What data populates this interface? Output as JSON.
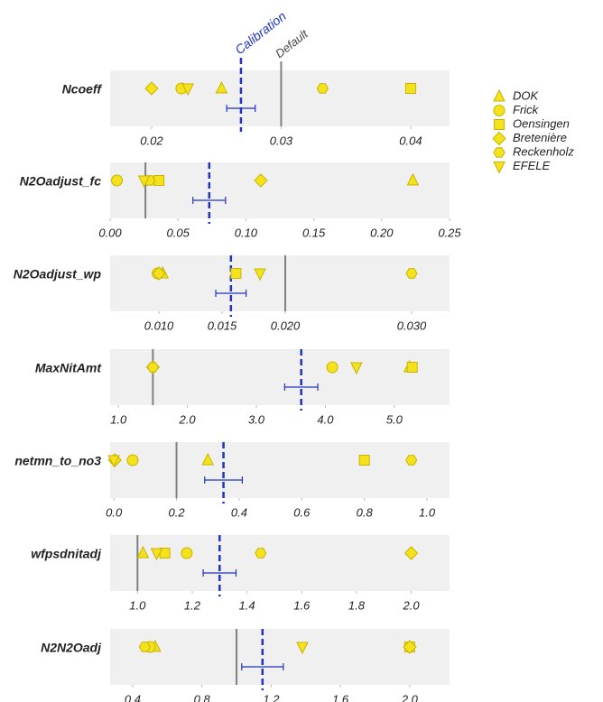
{
  "chart_data": {
    "type": "dotplot",
    "annotations": {
      "calibration": "Calibration",
      "default": "Default"
    },
    "marker_fill": "#f4e21c",
    "marker_stroke": "#c9b300",
    "default_color": "#808080",
    "calibration_color": "#1f33c4",
    "panel_color": "#f0f0f0",
    "series": [
      {
        "name": "DOK",
        "marker": "triangle",
        "values": [
          0.0254,
          0.223,
          0.0103,
          5.22,
          0.3,
          1.02,
          0.53
        ]
      },
      {
        "name": "Frick",
        "marker": "circle",
        "values": [
          0.0223,
          0.005,
          0.0099,
          4.1,
          0.06,
          1.18,
          0.5
        ]
      },
      {
        "name": "Oensingen",
        "marker": "square",
        "values": [
          0.04,
          0.036,
          0.0161,
          5.26,
          0.8,
          1.1,
          2.0
        ]
      },
      {
        "name": "Bretenière",
        "marker": "diamond",
        "values": [
          0.02,
          0.111,
          0.01,
          1.5,
          0.003,
          2.0,
          2.0
        ]
      },
      {
        "name": "Reckenholz",
        "marker": "hexagon",
        "values": [
          0.0332,
          0.029,
          0.03,
          1.5,
          0.95,
          1.45,
          0.47
        ]
      },
      {
        "name": "EFELE",
        "marker": "triangle-down",
        "values": [
          0.0228,
          0.025,
          0.018,
          4.45,
          0.0,
          1.07,
          1.38
        ]
      }
    ],
    "panels": [
      {
        "title": "Ncoeff",
        "xlim": [
          0.0168,
          0.043
        ],
        "xticks": [
          0.02,
          0.03,
          0.04
        ],
        "default": 0.03,
        "calibration": 0.0269,
        "calibration_error": 0.0011
      },
      {
        "title": "N2Oadjust_fc",
        "xlim": [
          0,
          0.25
        ],
        "xticks": [
          {
            "value": 0,
            "label": "0.00"
          },
          0.05,
          {
            "value": 0.1,
            "label": "0.10"
          },
          0.15,
          {
            "value": 0.2,
            "label": "0.20"
          },
          0.25
        ],
        "default": 0.026,
        "calibration": 0.073,
        "calibration_error": 0.012
      },
      {
        "title": "N2Oadjust_wp",
        "xlim": [
          0.00614,
          0.033
        ],
        "xticks": [
          {
            "value": 0.01,
            "label": "0.010"
          },
          0.015,
          {
            "value": 0.02,
            "label": "0.020"
          },
          {
            "value": 0.03,
            "label": "0.030"
          }
        ],
        "default": 0.02,
        "calibration": 0.0157,
        "calibration_error": 0.0012
      },
      {
        "title": "MaxNitAmt",
        "xlim": [
          0.88,
          5.8
        ],
        "xticks": [
          {
            "value": 1,
            "label": "1.0"
          },
          {
            "value": 2,
            "label": "2.0"
          },
          {
            "value": 3,
            "label": "3.0"
          },
          {
            "value": 4,
            "label": "4.0"
          },
          {
            "value": 5,
            "label": "5.0"
          }
        ],
        "default": 1.5,
        "calibration": 3.65,
        "calibration_error": 0.24
      },
      {
        "title": "netmn_to_no3",
        "xlim": [
          -0.012,
          1.072
        ],
        "xticks": [
          {
            "value": 0,
            "label": "0.0"
          },
          0.2,
          0.4,
          0.6,
          0.8,
          {
            "value": 1,
            "label": "1.0"
          }
        ],
        "default": 0.2,
        "calibration": 0.35,
        "calibration_error": 0.06
      },
      {
        "title": "wfpsdnitadj",
        "xlim": [
          0.9,
          2.14
        ],
        "xticks": [
          {
            "value": 1,
            "label": "1.0"
          },
          1.2,
          1.4,
          1.6,
          1.8,
          {
            "value": 2,
            "label": "2.0"
          }
        ],
        "default": 1.0,
        "calibration": 1.3,
        "calibration_error": 0.06
      },
      {
        "title": "N2N2Oadj",
        "xlim": [
          0.27,
          2.23
        ],
        "xticks": [
          0.4,
          0.8,
          1.2,
          1.6,
          {
            "value": 2,
            "label": "2.0"
          }
        ],
        "default": 1.0,
        "calibration": 1.15,
        "calibration_error": 0.12
      }
    ]
  }
}
